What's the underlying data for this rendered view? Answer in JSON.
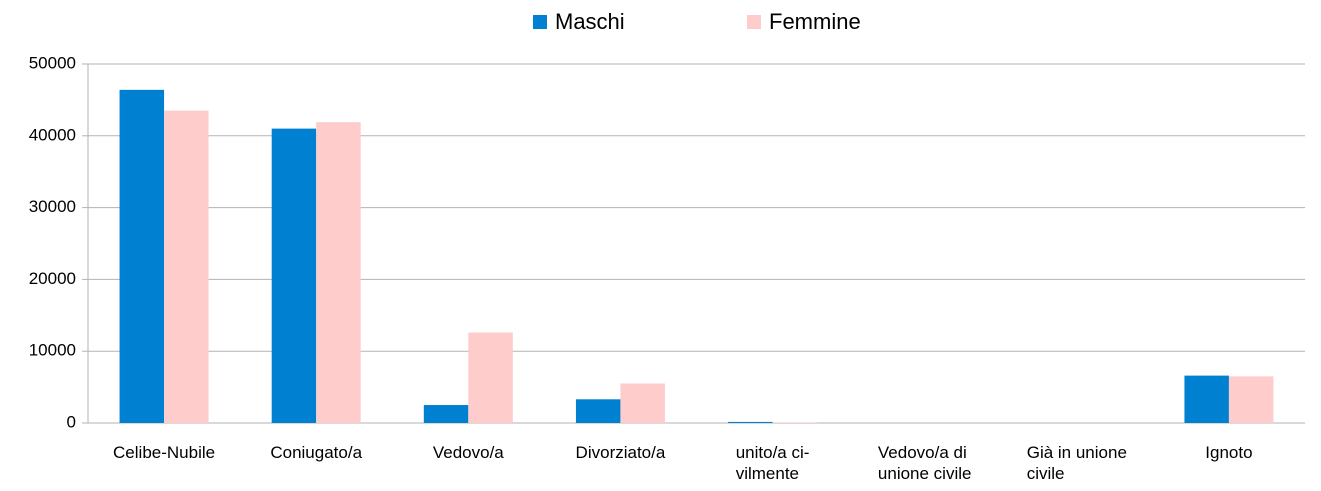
{
  "chart_data": {
    "type": "bar",
    "categories": [
      "Celibe-Nubile",
      "Coniugato/a",
      "Vedovo/a",
      "Divorziato/a",
      "unito/a ci-\nvilmente",
      "Vedovo/a di\nunione civile",
      "Già in unione\ncivile",
      "Ignoto"
    ],
    "series": [
      {
        "name": "Maschi",
        "color": "#0080d0",
        "values": [
          46400,
          41000,
          2500,
          3300,
          150,
          0,
          0,
          6600
        ]
      },
      {
        "name": "Femmine",
        "color": "#ffcccc",
        "values": [
          43500,
          41900,
          12600,
          5500,
          50,
          0,
          0,
          6500
        ]
      }
    ],
    "ylim": [
      0,
      50000
    ],
    "yticks": [
      0,
      10000,
      20000,
      30000,
      40000,
      50000
    ],
    "grid": true,
    "legend": "top"
  }
}
